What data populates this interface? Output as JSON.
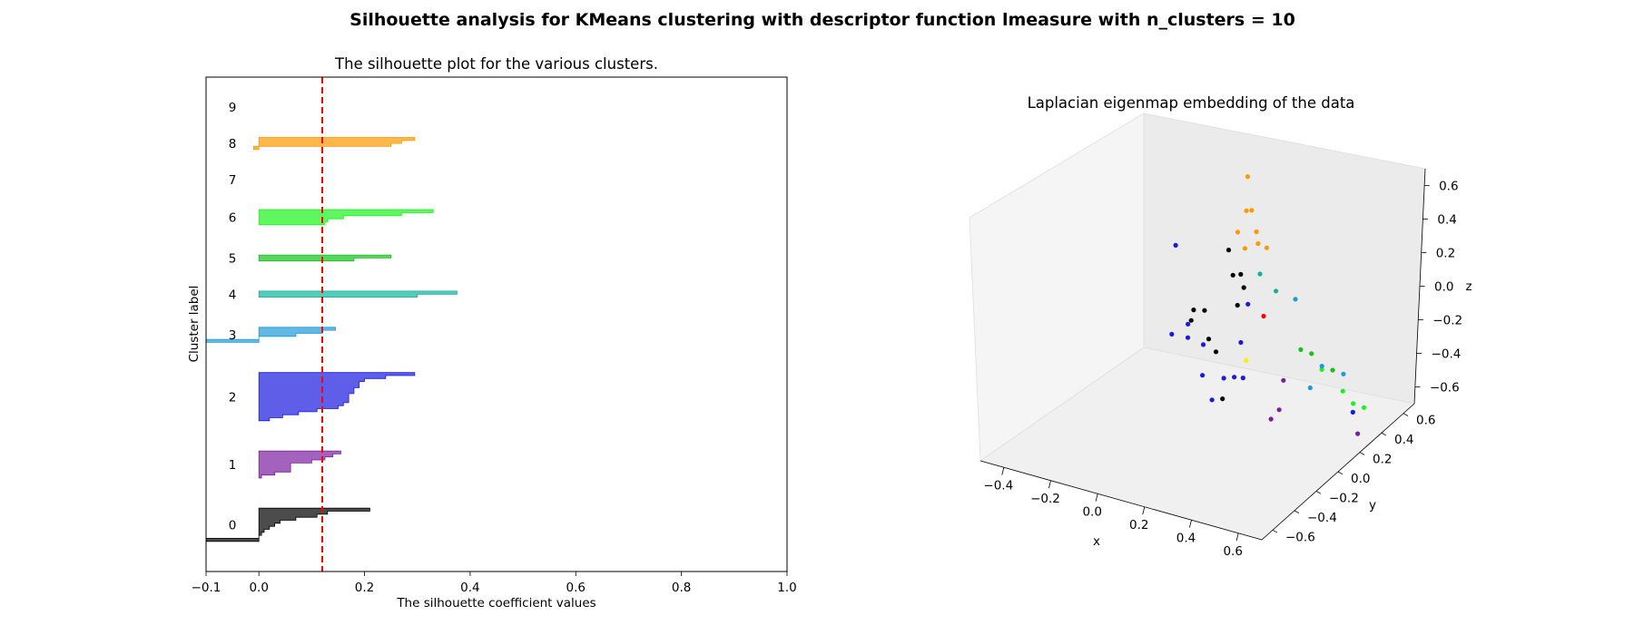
{
  "figure": {
    "suptitle": "Silhouette analysis for KMeans clustering with descriptor function lmeasure with n_clusters = 10"
  },
  "chart_data": [
    {
      "type": "area",
      "title": "The silhouette plot for the various clusters.",
      "xlabel": "The silhouette coefficient values",
      "ylabel": "Cluster label",
      "xlim": [
        -0.1,
        1.0
      ],
      "xticks": [
        -0.1,
        0.0,
        0.2,
        0.4,
        0.6,
        0.8,
        1.0
      ],
      "xtick_labels": [
        "−0.1",
        "0.0",
        "0.2",
        "0.4",
        "0.6",
        "0.8",
        "1.0"
      ],
      "yticks_visible": false,
      "grid": false,
      "average_silhouette": 0.12,
      "average_line_color": "#ff0000",
      "clusters": [
        {
          "label": "0",
          "color": "#000000",
          "values": [
            0.21,
            0.13,
            0.11,
            0.07,
            0.04,
            0.03,
            0.02,
            0.01,
            0.005,
            0.0,
            -0.1
          ]
        },
        {
          "label": "1",
          "color": "#7a1fa2",
          "values": [
            0.155,
            0.14,
            0.125,
            0.1,
            0.06,
            0.06,
            0.06,
            0.03,
            0.005
          ]
        },
        {
          "label": "2",
          "color": "#1a1ae0",
          "values": [
            0.295,
            0.24,
            0.2,
            0.19,
            0.19,
            0.18,
            0.18,
            0.17,
            0.17,
            0.17,
            0.16,
            0.15,
            0.11,
            0.075,
            0.045,
            0.02
          ]
        },
        {
          "label": "3",
          "color": "#1e9ad6",
          "values": [
            0.145,
            0.12,
            0.07,
            0.0,
            -0.1
          ]
        },
        {
          "label": "4",
          "color": "#0fb39a",
          "values": [
            0.375,
            0.3
          ]
        },
        {
          "label": "5",
          "color": "#14c21a",
          "values": [
            0.25,
            0.18
          ]
        },
        {
          "label": "6",
          "color": "#1cf21c",
          "values": [
            0.33,
            0.27,
            0.16,
            0.13,
            0.125
          ]
        },
        {
          "label": "7",
          "color": "#ffee00",
          "values": []
        },
        {
          "label": "8",
          "color": "#ff9900",
          "values": [
            0.295,
            0.27,
            0.25,
            -0.01
          ]
        },
        {
          "label": "9",
          "color": "#ff0000",
          "values": []
        }
      ]
    },
    {
      "type": "scatter",
      "title": "Laplacian eigenmap embedding of the data",
      "xlabel": "x",
      "ylabel": "y",
      "zlabel": "z",
      "xlim": [
        -0.5,
        0.7
      ],
      "ylim": [
        -0.7,
        0.7
      ],
      "zlim": [
        -0.65,
        0.72
      ],
      "xtick_labels": [
        "−0.4",
        "−0.2",
        "0.0",
        "0.2",
        "0.4",
        "0.6"
      ],
      "ytick_labels": [
        "−0.6",
        "−0.4",
        "−0.2",
        "0.0",
        "0.2",
        "0.4",
        "0.6"
      ],
      "ztick_labels": [
        "−0.6",
        "−0.4",
        "−0.2",
        "0.0",
        "0.2",
        "0.4",
        "0.6"
      ],
      "points": [
        {
          "c": "8",
          "x": 0.05,
          "y": -0.35,
          "z": 0.7
        },
        {
          "c": "8",
          "x": 0.1,
          "y": -0.35,
          "z": 0.55
        },
        {
          "c": "8",
          "x": 0.05,
          "y": -0.35,
          "z": 0.5
        },
        {
          "c": "8",
          "x": 0.1,
          "y": -0.3,
          "z": 0.4
        },
        {
          "c": "8",
          "x": 0.03,
          "y": -0.4,
          "z": 0.38
        },
        {
          "c": "8",
          "x": 0.12,
          "y": -0.3,
          "z": 0.35
        },
        {
          "c": "8",
          "x": 0.15,
          "y": -0.25,
          "z": 0.33
        },
        {
          "c": "8",
          "x": 0.05,
          "y": -0.35,
          "z": 0.28
        },
        {
          "c": "4",
          "x": 0.15,
          "y": -0.3,
          "z": 0.2
        },
        {
          "c": "4",
          "x": 0.2,
          "y": -0.2,
          "z": 0.1
        },
        {
          "c": "3",
          "x": 0.28,
          "y": -0.1,
          "z": 0.08
        },
        {
          "c": "9",
          "x": 0.2,
          "y": -0.3,
          "z": 0.0
        },
        {
          "c": "0",
          "x": -0.05,
          "y": -0.4,
          "z": 0.2
        },
        {
          "c": "0",
          "x": 0.0,
          "y": -0.4,
          "z": 0.1
        },
        {
          "c": "0",
          "x": 0.02,
          "y": -0.35,
          "z": 0.1
        },
        {
          "c": "0",
          "x": 0.0,
          "y": -0.3,
          "z": -0.02
        },
        {
          "c": "0",
          "x": 0.0,
          "y": -0.35,
          "z": -0.1
        },
        {
          "c": "0",
          "x": -0.15,
          "y": -0.5,
          "z": -0.2
        },
        {
          "c": "0",
          "x": -0.2,
          "y": -0.55,
          "z": -0.22
        },
        {
          "c": "0",
          "x": -0.22,
          "y": -0.55,
          "z": -0.3
        },
        {
          "c": "0",
          "x": -0.1,
          "y": -0.5,
          "z": -0.32
        },
        {
          "c": "0",
          "x": -0.08,
          "y": -0.45,
          "z": -0.4
        },
        {
          "c": "0",
          "x": 0.0,
          "y": -0.45,
          "z": -0.6
        },
        {
          "c": "2",
          "x": -0.45,
          "y": -0.5,
          "z": -0.1
        },
        {
          "c": "2",
          "x": 0.1,
          "y": -0.35,
          "z": 0.0
        },
        {
          "c": "2",
          "x": 0.1,
          "y": -0.4,
          "z": -0.2
        },
        {
          "c": "2",
          "x": -0.25,
          "y": -0.55,
          "z": -0.35
        },
        {
          "c": "2",
          "x": -0.15,
          "y": -0.5,
          "z": -0.4
        },
        {
          "c": "2",
          "x": 0.05,
          "y": -0.4,
          "z": -0.45
        },
        {
          "c": "2",
          "x": 0.08,
          "y": -0.35,
          "z": -0.45
        },
        {
          "c": "2",
          "x": -0.4,
          "y": -0.55,
          "z": -0.55
        },
        {
          "c": "2",
          "x": -0.3,
          "y": -0.5,
          "z": -0.5
        },
        {
          "c": "2",
          "x": -0.05,
          "y": -0.4,
          "z": -0.55
        },
        {
          "c": "2",
          "x": -0.2,
          "y": -0.45,
          "z": -0.65
        },
        {
          "c": "2",
          "x": -0.1,
          "y": -0.45,
          "z": -0.7
        },
        {
          "c": "7",
          "x": 0.05,
          "y": -0.3,
          "z": -0.4
        },
        {
          "c": "1",
          "x": 0.25,
          "y": -0.15,
          "z": -0.4
        },
        {
          "c": "1",
          "x": 0.2,
          "y": -0.2,
          "z": -0.65
        },
        {
          "c": "1",
          "x": 0.22,
          "y": -0.15,
          "z": -0.6
        },
        {
          "c": "1",
          "x": 0.6,
          "y": 0.2,
          "z": -0.55
        },
        {
          "c": "5",
          "x": 0.35,
          "y": -0.1,
          "z": -0.15
        },
        {
          "c": "5",
          "x": 0.4,
          "y": -0.05,
          "z": -0.15
        },
        {
          "c": "5",
          "x": 0.5,
          "y": 0.05,
          "z": -0.2
        },
        {
          "c": "6",
          "x": 0.45,
          "y": 0.0,
          "z": -0.22
        },
        {
          "c": "6",
          "x": 0.55,
          "y": 0.1,
          "z": -0.3
        },
        {
          "c": "6",
          "x": 0.6,
          "y": 0.15,
          "z": -0.35
        },
        {
          "c": "6",
          "x": 0.65,
          "y": 0.2,
          "z": -0.35
        },
        {
          "c": "3",
          "x": 0.45,
          "y": 0.0,
          "z": -0.2
        },
        {
          "c": "3",
          "x": 0.4,
          "y": -0.05,
          "z": -0.35
        },
        {
          "c": "3",
          "x": 0.55,
          "y": 0.1,
          "z": -0.2
        },
        {
          "c": "2",
          "x": 0.6,
          "y": 0.15,
          "z": -0.4
        }
      ]
    }
  ]
}
